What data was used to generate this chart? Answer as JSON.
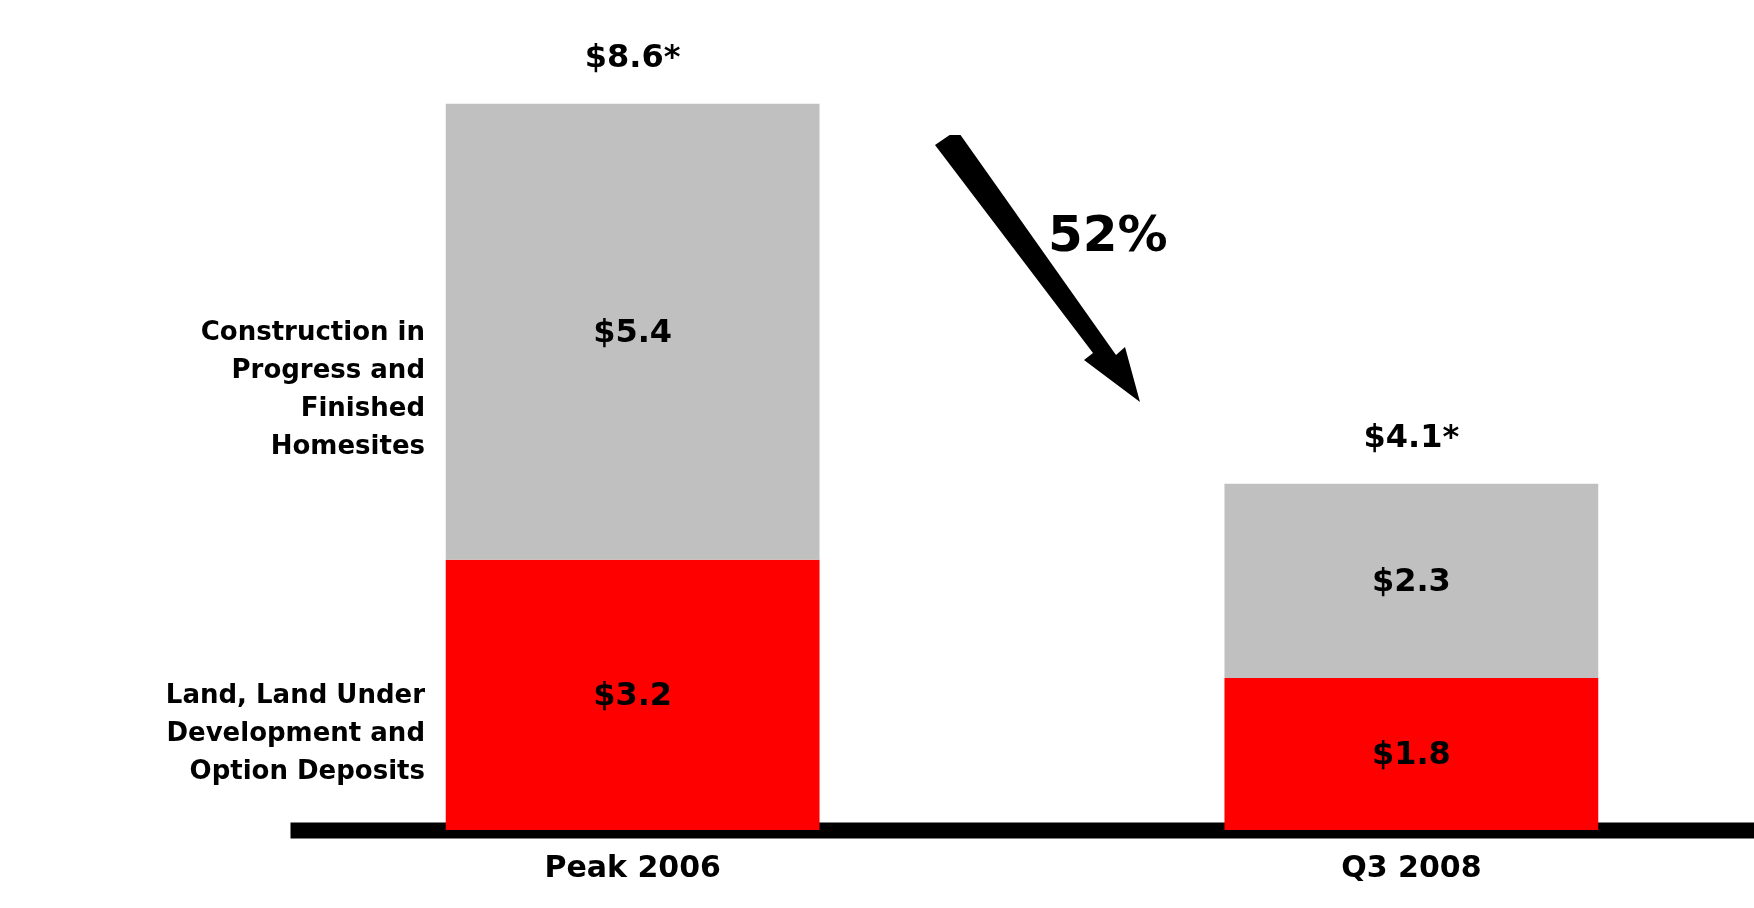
{
  "chart_data": {
    "type": "bar",
    "stacked": true,
    "categories": [
      "Peak 2006",
      "Q3 2008"
    ],
    "series": [
      {
        "name": "Land, Land Under Development and Option Deposits",
        "color": "#ff0000",
        "values": [
          3.2,
          1.8
        ],
        "value_labels": [
          "$3.2",
          "$1.8"
        ]
      },
      {
        "name": "Construction in Progress and Finished Homesites",
        "color": "#c0c0c0",
        "values": [
          5.4,
          2.3
        ],
        "value_labels": [
          "$5.4",
          "$2.3"
        ]
      }
    ],
    "totals": [
      "$8.6*",
      "$4.1*"
    ],
    "annotations": [
      "52%"
    ],
    "legend": "left",
    "tick_labels": "x"
  }
}
